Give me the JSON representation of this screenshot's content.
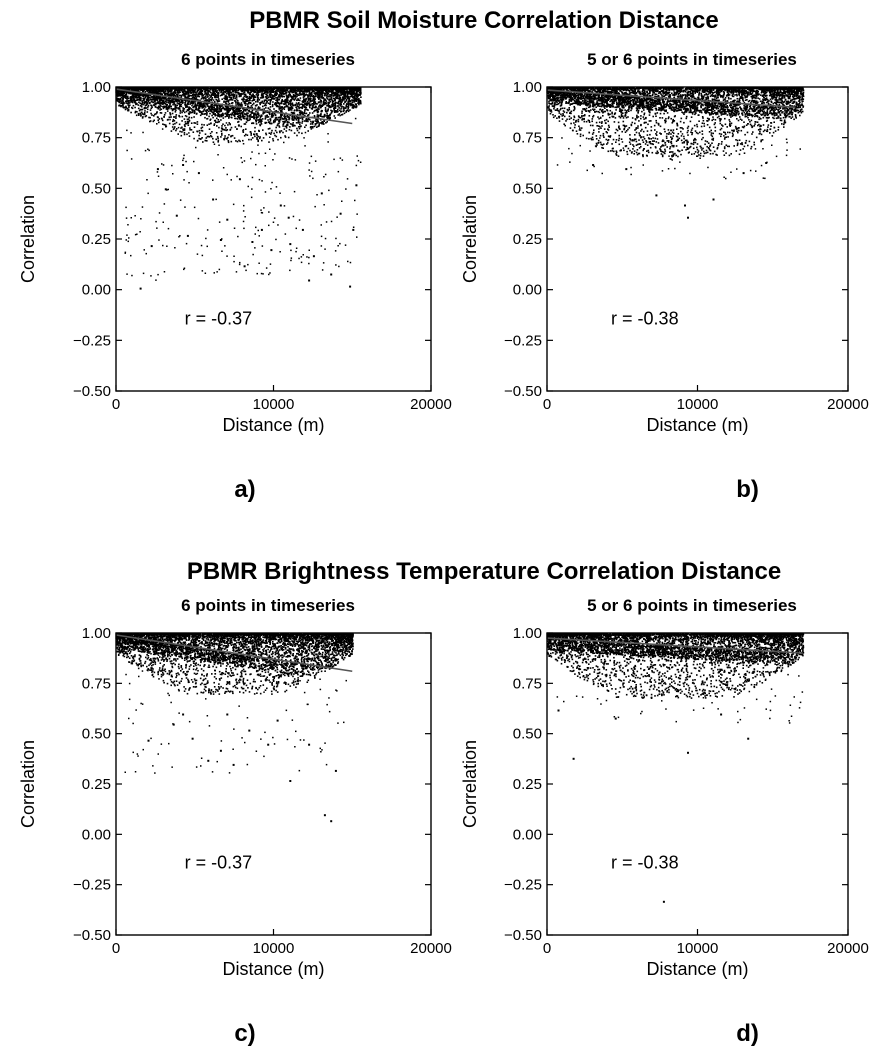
{
  "figure": {
    "title_top": "PBMR Soil Moisture Correlation Distance",
    "title_bottom": "PBMR Brightness Temperature Correlation Distance"
  },
  "chart_data": [
    {
      "type": "scatter",
      "panel_label": "a)",
      "subtitle": "6 points in timeseries",
      "xlabel": "Distance (m)",
      "ylabel": "Correlation",
      "xlim": [
        0,
        20000
      ],
      "ylim": [
        -0.5,
        1.0
      ],
      "x_ticks": [
        "0",
        "10000",
        "20000"
      ],
      "y_ticks": [
        "-0.50",
        "-0.25",
        "0.00",
        "0.25",
        "0.50",
        "0.75",
        "1.00"
      ],
      "annotation": "r = -0.37",
      "trend_line": {
        "x": [
          0,
          15000
        ],
        "y": [
          0.99,
          0.82
        ]
      },
      "scatter_summary": {
        "x_max": 15500,
        "dense_band_y": [
          0.85,
          1.0
        ],
        "min_y": 0.0
      },
      "outliers": [
        [
          1500,
          0.01
        ],
        [
          2200,
          0.22
        ],
        [
          3100,
          0.5
        ],
        [
          3800,
          0.37
        ],
        [
          4500,
          0.27
        ],
        [
          5200,
          0.58
        ],
        [
          6100,
          0.45
        ],
        [
          7000,
          0.35
        ],
        [
          7800,
          0.55
        ],
        [
          8600,
          0.24
        ],
        [
          9200,
          0.3
        ],
        [
          9800,
          0.2
        ],
        [
          10400,
          0.42
        ],
        [
          11000,
          0.23
        ],
        [
          11800,
          0.3
        ],
        [
          12500,
          0.17
        ],
        [
          13000,
          0.48
        ],
        [
          13600,
          0.08
        ],
        [
          14200,
          0.38
        ],
        [
          14800,
          0.02
        ],
        [
          15200,
          0.52
        ],
        [
          2600,
          0.6
        ],
        [
          4200,
          0.62
        ],
        [
          6600,
          0.25
        ],
        [
          8100,
          0.12
        ],
        [
          10900,
          0.36
        ],
        [
          12200,
          0.05
        ],
        [
          15000,
          0.3
        ]
      ]
    },
    {
      "type": "scatter",
      "panel_label": "b)",
      "subtitle": "5 or 6 points in timeseries",
      "xlabel": "Distance (m)",
      "ylabel": "Correlation",
      "xlim": [
        0,
        20000
      ],
      "ylim": [
        -0.5,
        1.0
      ],
      "x_ticks": [
        "0",
        "10000",
        "20000"
      ],
      "y_ticks": [
        "-0.50",
        "-0.25",
        "0.00",
        "0.25",
        "0.50",
        "0.75",
        "1.00"
      ],
      "annotation": "r = -0.38",
      "trend_line": {
        "x": [
          0,
          16500
        ],
        "y": [
          0.985,
          0.9
        ]
      },
      "scatter_summary": {
        "x_max": 17000,
        "dense_band_y": [
          0.78,
          1.0
        ],
        "min_y": 0.35
      },
      "outliers": [
        [
          7200,
          0.47
        ],
        [
          9300,
          0.36
        ],
        [
          9100,
          0.42
        ],
        [
          11000,
          0.45
        ],
        [
          5200,
          0.6
        ],
        [
          13000,
          0.58
        ],
        [
          3000,
          0.62
        ],
        [
          14500,
          0.63
        ]
      ]
    },
    {
      "type": "scatter",
      "panel_label": "c)",
      "subtitle": "6 points in timeseries",
      "xlabel": "Distance (m)",
      "ylabel": "Correlation",
      "xlim": [
        0,
        20000
      ],
      "ylim": [
        -0.5,
        1.0
      ],
      "x_ticks": [
        "0",
        "10000",
        "20000"
      ],
      "y_ticks": [
        "-0.50",
        "-0.25",
        "0.00",
        "0.25",
        "0.50",
        "0.75",
        "1.00"
      ],
      "annotation": "r = -0.37",
      "trend_line": {
        "x": [
          0,
          15000
        ],
        "y": [
          0.99,
          0.81
        ]
      },
      "scatter_summary": {
        "x_max": 15000,
        "dense_band_y": [
          0.82,
          1.0
        ],
        "min_y": 0.07
      },
      "outliers": [
        [
          2000,
          0.47
        ],
        [
          3600,
          0.55
        ],
        [
          4800,
          0.48
        ],
        [
          5800,
          0.37
        ],
        [
          6600,
          0.42
        ],
        [
          7400,
          0.35
        ],
        [
          8400,
          0.52
        ],
        [
          9600,
          0.45
        ],
        [
          11000,
          0.27
        ],
        [
          12200,
          0.45
        ],
        [
          13200,
          0.1
        ],
        [
          13600,
          0.07
        ],
        [
          13900,
          0.32
        ],
        [
          4200,
          0.6
        ],
        [
          7000,
          0.6
        ],
        [
          10200,
          0.57
        ]
      ]
    },
    {
      "type": "scatter",
      "panel_label": "d)",
      "subtitle": "5 or 6 points in timeseries",
      "xlabel": "Distance (m)",
      "ylabel": "Correlation",
      "xlim": [
        0,
        20000
      ],
      "ylim": [
        -0.5,
        1.0
      ],
      "x_ticks": [
        "0",
        "10000",
        "20000"
      ],
      "y_ticks": [
        "-0.50",
        "-0.25",
        "0.00",
        "0.25",
        "0.50",
        "0.75",
        "1.00"
      ],
      "annotation": "r = -0.38",
      "trend_line": {
        "x": [
          0,
          17000
        ],
        "y": [
          0.975,
          0.9
        ]
      },
      "scatter_summary": {
        "x_max": 17000,
        "dense_band_y": [
          0.8,
          1.0
        ],
        "min_y": -0.33
      },
      "outliers": [
        [
          1700,
          0.38
        ],
        [
          9300,
          0.41
        ],
        [
          7700,
          -0.33
        ],
        [
          13300,
          0.48
        ],
        [
          4500,
          0.58
        ],
        [
          11500,
          0.6
        ],
        [
          700,
          0.62
        ]
      ]
    }
  ]
}
